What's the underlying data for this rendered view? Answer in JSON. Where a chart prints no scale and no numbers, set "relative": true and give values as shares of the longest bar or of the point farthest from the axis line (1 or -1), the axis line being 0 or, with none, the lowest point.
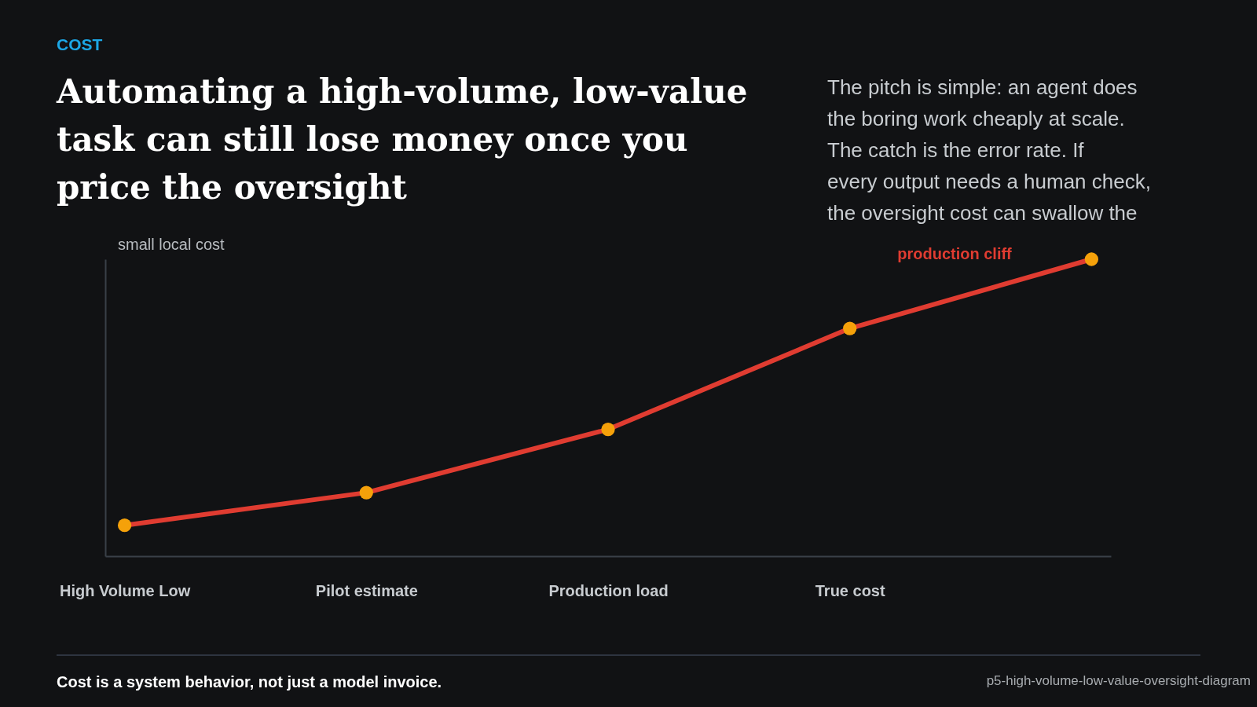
{
  "chart_data": {
    "type": "line",
    "subtitle": "COST",
    "title": "Automating a high-volume, low-value task can still lose money once you price the oversight",
    "ylabel": "small local cost",
    "categories": [
      "High Volume Low",
      "Pilot estimate",
      "Production load",
      "True cost",
      null
    ],
    "relative": true,
    "series": [
      {
        "color": "#e03c31",
        "values": [
          0.104,
          0.214,
          0.427,
          0.767,
          1
        ]
      }
    ],
    "marker": "circle",
    "line_style": "solid",
    "grid": false,
    "annotations": [
      "The pitch is simple: an agent does the boring work cheaply at scale. The catch is the error rate. If every output needs a human check, the oversight cost can swallow the",
      "production cliff",
      "Cost is a system behavior, not just a model invoice.",
      "p5-high-volume-low-value-oversight-diagram"
    ]
  }
}
